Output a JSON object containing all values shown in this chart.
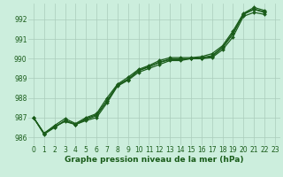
{
  "title": "Graphe pression niveau de la mer (hPa)",
  "background_color": "#cceedd",
  "grid_color": "#aaccbb",
  "line_color": "#1a5c1a",
  "xlim": [
    -0.5,
    23.5
  ],
  "ylim": [
    985.6,
    992.8
  ],
  "yticks": [
    986,
    987,
    988,
    989,
    990,
    991,
    992
  ],
  "xticks": [
    0,
    1,
    2,
    3,
    4,
    5,
    6,
    7,
    8,
    9,
    10,
    11,
    12,
    13,
    14,
    15,
    16,
    17,
    18,
    19,
    20,
    21,
    22,
    23
  ],
  "series": [
    [
      987.0,
      986.2,
      986.55,
      986.8,
      986.65,
      986.85,
      987.0,
      987.75,
      988.6,
      988.9,
      989.3,
      989.5,
      989.7,
      989.9,
      989.9,
      990.0,
      990.0,
      990.05,
      990.45,
      991.1,
      992.15,
      992.35,
      992.25,
      null
    ],
    [
      987.0,
      986.2,
      986.5,
      986.85,
      986.65,
      986.9,
      987.1,
      987.85,
      988.65,
      988.95,
      989.4,
      989.6,
      989.8,
      989.95,
      989.95,
      990.0,
      990.0,
      990.1,
      990.55,
      991.25,
      992.25,
      992.5,
      992.35,
      null
    ],
    [
      987.0,
      986.2,
      986.6,
      986.95,
      986.7,
      987.0,
      987.2,
      988.0,
      988.7,
      989.05,
      989.45,
      989.65,
      989.9,
      990.05,
      990.05,
      990.05,
      990.1,
      990.25,
      990.65,
      991.4,
      992.3,
      992.6,
      992.45,
      null
    ],
    [
      987.0,
      986.15,
      986.5,
      986.85,
      986.65,
      986.95,
      987.15,
      987.85,
      988.65,
      988.95,
      989.38,
      989.58,
      989.82,
      989.98,
      989.98,
      990.0,
      990.05,
      990.15,
      990.58,
      991.3,
      992.27,
      992.52,
      992.38,
      null
    ]
  ],
  "marker": "D",
  "marker_size": 2.0,
  "line_width": 0.9,
  "tick_fontsize": 5.5,
  "label_fontsize": 6.5
}
